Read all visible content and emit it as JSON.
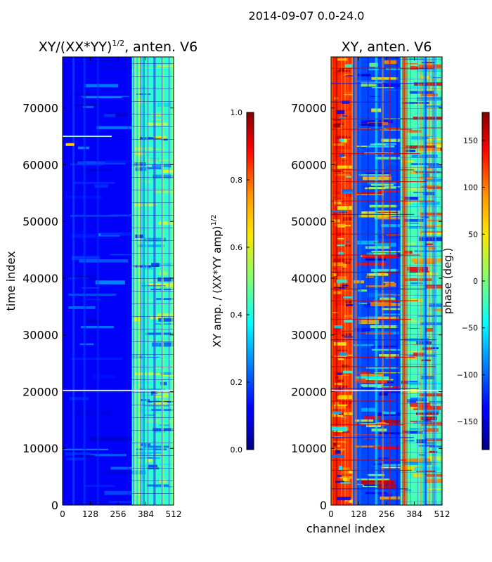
{
  "suptitle": "2014-09-07 0.0-24.0",
  "chart_data": [
    {
      "type": "heatmap",
      "title": "XY/(XX*YY)^(1/2), anten. V6",
      "title_main": "XY/(XX*YY)",
      "title_exp": "1/2",
      "title_tail": ", anten. V6",
      "xlabel": "",
      "ylabel": "time index",
      "xlim": [
        0,
        512
      ],
      "ylim": [
        0,
        79000
      ],
      "xticks": [
        0,
        128,
        256,
        384,
        512
      ],
      "yticks": [
        0,
        10000,
        20000,
        30000,
        40000,
        50000,
        60000,
        70000
      ],
      "colorbar": {
        "label": "XY amp. / (XX*YY amp)^(1/2)",
        "label_main": "XY amp. / (XX*YY amp)",
        "label_exp": "1/2",
        "range": [
          0.0,
          1.0
        ],
        "ticks": [
          0.0,
          0.2,
          0.4,
          0.6,
          0.8,
          1.0
        ],
        "tick_labels": [
          "0.0",
          "0.2",
          "0.4",
          "0.6",
          "0.8",
          "1.0"
        ],
        "colormap": "jet"
      },
      "regions": [
        {
          "x": [
            0,
            320
          ],
          "y": [
            0,
            79000
          ],
          "value": 0.12
        },
        {
          "x": [
            320,
            512
          ],
          "y": [
            0,
            79000
          ],
          "value": 0.42
        }
      ]
    },
    {
      "type": "heatmap",
      "title": "XY, anten. V6",
      "xlabel": "channel index",
      "ylabel": "",
      "xlim": [
        0,
        512
      ],
      "ylim": [
        0,
        79000
      ],
      "xticks": [
        0,
        128,
        256,
        384,
        512
      ],
      "yticks": [
        0,
        10000,
        20000,
        30000,
        40000,
        50000,
        60000,
        70000
      ],
      "colorbar": {
        "label": "phase (deg.)",
        "range": [
          -180,
          180
        ],
        "ticks": [
          -150,
          -100,
          -50,
          0,
          50,
          100,
          150
        ],
        "tick_labels": [
          "−150",
          "−100",
          "−50",
          "0",
          "50",
          "100",
          "150"
        ],
        "colormap": "jet"
      },
      "regions": [
        {
          "x": [
            0,
            100
          ],
          "y": [
            0,
            79000
          ],
          "value": 120
        },
        {
          "x": [
            100,
            320
          ],
          "y": [
            0,
            79000
          ],
          "value": -110
        },
        {
          "x": [
            320,
            512
          ],
          "y": [
            0,
            79000
          ],
          "value": -20
        }
      ]
    }
  ]
}
